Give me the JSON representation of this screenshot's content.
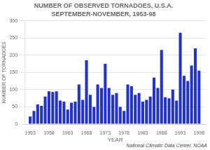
{
  "chart_data": {
    "type": "bar",
    "title": "NUMBER OF OBSERVED TORNADOES, U.S.A.",
    "subtitle": "SEPTEMBER-NOVEMBER, 1953-98",
    "xlabel": "YEAR",
    "ylabel": "NUMBER OF TORNADOES",
    "annotations": [
      "National Climatic Data Center, NOAA"
    ],
    "x": [
      1953,
      1954,
      1955,
      1956,
      1957,
      1958,
      1959,
      1960,
      1961,
      1962,
      1963,
      1964,
      1965,
      1966,
      1967,
      1968,
      1969,
      1970,
      1971,
      1972,
      1973,
      1974,
      1975,
      1976,
      1977,
      1978,
      1979,
      1980,
      1981,
      1982,
      1983,
      1984,
      1985,
      1986,
      1987,
      1988,
      1989,
      1990,
      1991,
      1992,
      1993,
      1994,
      1995,
      1996,
      1997,
      1998
    ],
    "values": [
      22,
      38,
      57,
      53,
      80,
      95,
      93,
      95,
      68,
      65,
      42,
      62,
      65,
      115,
      70,
      185,
      85,
      50,
      115,
      105,
      175,
      105,
      85,
      90,
      50,
      38,
      115,
      110,
      85,
      90,
      65,
      70,
      80,
      135,
      105,
      215,
      78,
      75,
      100,
      68,
      265,
      140,
      125,
      170,
      220,
      155
    ],
    "color": "#2233cc",
    "xlim": [
      1951.5,
      1999.8
    ],
    "xticks": [
      1953,
      1958,
      1963,
      1968,
      1973,
      1978,
      1983,
      1988,
      1993,
      1998
    ],
    "ylim": [
      0,
      300
    ],
    "yticks": [
      0,
      50,
      100,
      150,
      200,
      250,
      300
    ],
    "grid": "y"
  }
}
